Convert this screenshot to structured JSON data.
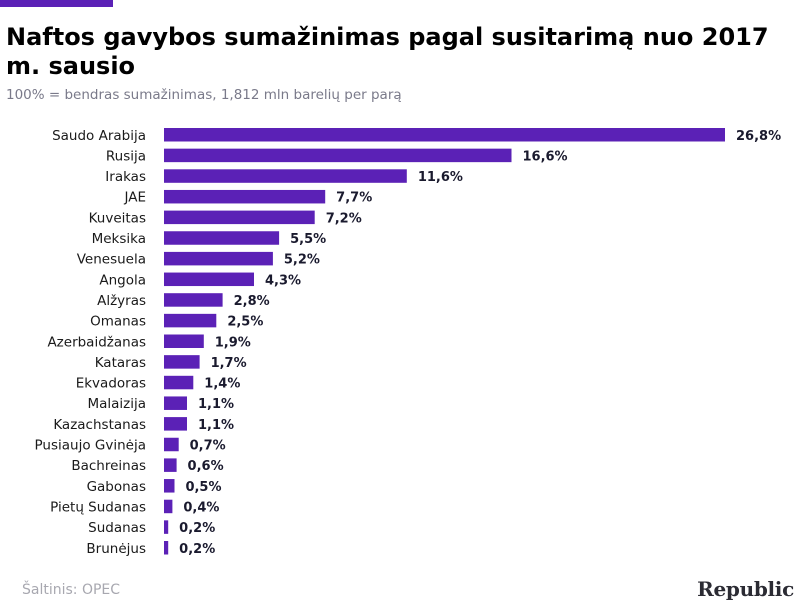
{
  "header": {
    "title": "Naftos gavybos sumažinimas pagal susitarimą nuo 2017 m. sausio",
    "subtitle": "100% = bendras sumažinimas, 1,812 mln barelių per parą"
  },
  "footer": {
    "source": "Šaltinis: OPEC",
    "brand": "Republic"
  },
  "colors": {
    "accent": "#5b21b6",
    "bar": "#5b21b6"
  },
  "chart_data": {
    "type": "bar",
    "orientation": "horizontal",
    "title": "Naftos gavybos sumažinimas pagal susitarimą nuo 2017 m. sausio",
    "subtitle": "100% = bendras sumažinimas, 1,812 mln barelių per parą",
    "xlabel": "",
    "ylabel": "",
    "xlim": [
      0,
      26.8
    ],
    "grid": false,
    "legend": "none",
    "categories": [
      "Saudo Arabija",
      "Rusija",
      "Irakas",
      "JAE",
      "Kuveitas",
      "Meksika",
      "Venesuela",
      "Angola",
      "Alžyras",
      "Omanas",
      "Azerbaidžanas",
      "Kataras",
      "Ekvadoras",
      "Malaizija",
      "Kazachstanas",
      "Pusiaujo Gvinėja",
      "Bachreinas",
      "Gabonas",
      "Pietų Sudanas",
      "Sudanas",
      "Brunėjus"
    ],
    "values": [
      26.8,
      16.6,
      11.6,
      7.7,
      7.2,
      5.5,
      5.2,
      4.3,
      2.8,
      2.5,
      1.9,
      1.7,
      1.4,
      1.1,
      1.1,
      0.7,
      0.6,
      0.5,
      0.4,
      0.2,
      0.2
    ],
    "value_labels": [
      "26,8%",
      "16,6%",
      "11,6%",
      "7,7%",
      "7,2%",
      "5,5%",
      "5,2%",
      "4,3%",
      "2,8%",
      "2,5%",
      "1,9%",
      "1,7%",
      "1,4%",
      "1,1%",
      "1,1%",
      "0,7%",
      "0,6%",
      "0,5%",
      "0,4%",
      "0,2%",
      "0,2%"
    ]
  }
}
